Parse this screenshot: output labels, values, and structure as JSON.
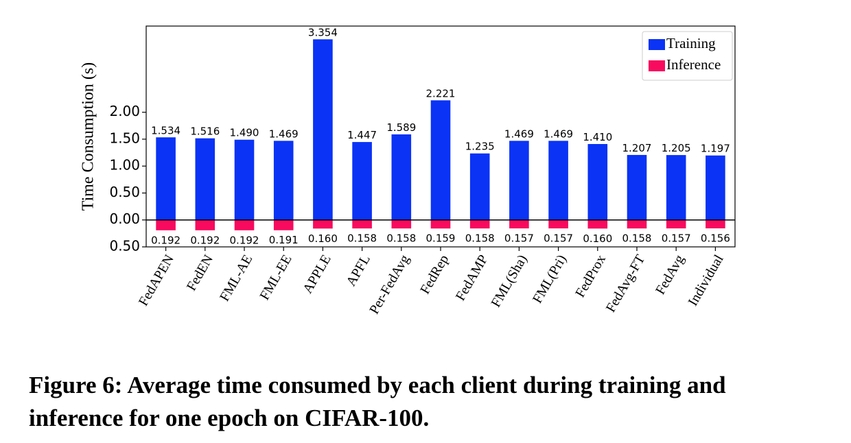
{
  "chart_data": {
    "type": "bar",
    "y_label": "Time Consumption (s)",
    "caption": "Figure 6: Average time consumed by each client during training and inference for one epoch on CIFAR-100.",
    "categories": [
      "FedAPEN",
      "FedEN",
      "FML-AE",
      "FML-EE",
      "APPLE",
      "APFL",
      "Per-FedAvg",
      "FedRep",
      "FedAMP",
      "FML(Sha)",
      "FML(Pri)",
      "FedProx",
      "FedAvg-FT",
      "FedAvg",
      "Individual"
    ],
    "series": [
      {
        "name": "Training",
        "color": "#0a33f5",
        "values": [
          1.534,
          1.516,
          1.49,
          1.469,
          3.354,
          1.447,
          1.589,
          2.221,
          1.235,
          1.469,
          1.469,
          1.41,
          1.207,
          1.205,
          1.197
        ],
        "value_labels": [
          "1.534",
          "1.516",
          "1.490",
          "1.469",
          "3.354",
          "1.447",
          "1.589",
          "2.221",
          "1.235",
          "1.469",
          "1.469",
          "1.410",
          "1.207",
          "1.205",
          "1.197"
        ]
      },
      {
        "name": "Inference",
        "color": "#f80a5e",
        "values": [
          -0.192,
          -0.192,
          -0.192,
          -0.191,
          -0.16,
          -0.158,
          -0.158,
          -0.159,
          -0.158,
          -0.157,
          -0.157,
          -0.16,
          -0.158,
          -0.157,
          -0.156
        ],
        "value_labels": [
          "0.192",
          "0.192",
          "0.192",
          "0.191",
          "0.160",
          "0.158",
          "0.158",
          "0.159",
          "0.158",
          "0.157",
          "0.157",
          "0.160",
          "0.158",
          "0.157",
          "0.156"
        ]
      }
    ],
    "ylim": [
      -0.5,
      3.6
    ],
    "yticks": [
      {
        "value": -0.5,
        "label": "0.50"
      },
      {
        "value": 0,
        "label": "0.00"
      },
      {
        "value": 0.5,
        "label": "0.50"
      },
      {
        "value": 1.0,
        "label": "1.00"
      },
      {
        "value": 1.5,
        "label": "1.50"
      },
      {
        "value": 2.0,
        "label": "2.00"
      }
    ],
    "legend": "upper right",
    "zero_line": true
  }
}
